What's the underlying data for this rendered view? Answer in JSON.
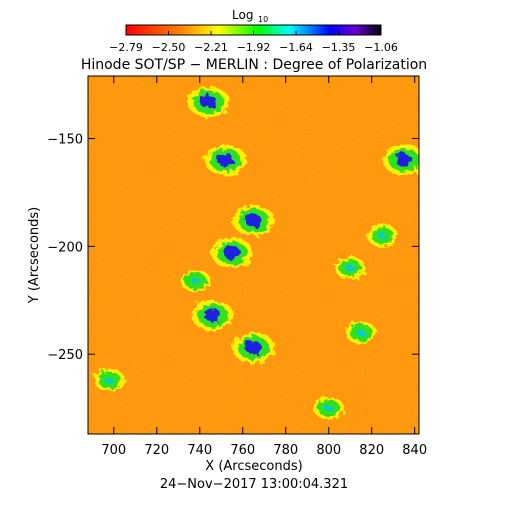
{
  "colorbar": {
    "title": "Log",
    "title_sub": "10",
    "tick_labels": [
      "−2.79",
      "−2.50",
      "−2.21",
      "−1.92",
      "−1.64",
      "−1.35",
      "−1.06"
    ],
    "range": [
      -2.79,
      -1.06
    ],
    "colors": [
      "#ff0000",
      "#ff8800",
      "#ffff00",
      "#00ff00",
      "#00ffff",
      "#0000ff",
      "#6a00d0",
      "#000000"
    ]
  },
  "chart_data": {
    "type": "heatmap",
    "title": "Hinode SOT/SP − MERLIN : Degree of Polarization",
    "xlabel": "X (Arcseconds)",
    "ylabel": "Y (Arcseconds)",
    "x_ticks": [
      700,
      720,
      740,
      760,
      780,
      800,
      820,
      840
    ],
    "y_ticks": [
      -150,
      -200,
      -250
    ],
    "xlim": [
      688,
      842
    ],
    "ylim": [
      -287,
      -121
    ],
    "colorscale": "Log10 degree of polarization",
    "background_color": "#ff9a10",
    "features": [
      {
        "x": 744,
        "y": -133,
        "level": "high"
      },
      {
        "x": 752,
        "y": -160,
        "level": "high"
      },
      {
        "x": 765,
        "y": -188,
        "level": "high"
      },
      {
        "x": 755,
        "y": -203,
        "level": "high"
      },
      {
        "x": 738,
        "y": -216,
        "level": "medium"
      },
      {
        "x": 746,
        "y": -232,
        "level": "high"
      },
      {
        "x": 765,
        "y": -247,
        "level": "high"
      },
      {
        "x": 698,
        "y": -262,
        "level": "medium"
      },
      {
        "x": 810,
        "y": -210,
        "level": "medium"
      },
      {
        "x": 825,
        "y": -195,
        "level": "medium"
      },
      {
        "x": 835,
        "y": -160,
        "level": "high"
      },
      {
        "x": 815,
        "y": -240,
        "level": "medium"
      },
      {
        "x": 800,
        "y": -275,
        "level": "medium"
      }
    ]
  },
  "footer": {
    "timestamp": "24−Nov−2017 13:00:04.321"
  }
}
